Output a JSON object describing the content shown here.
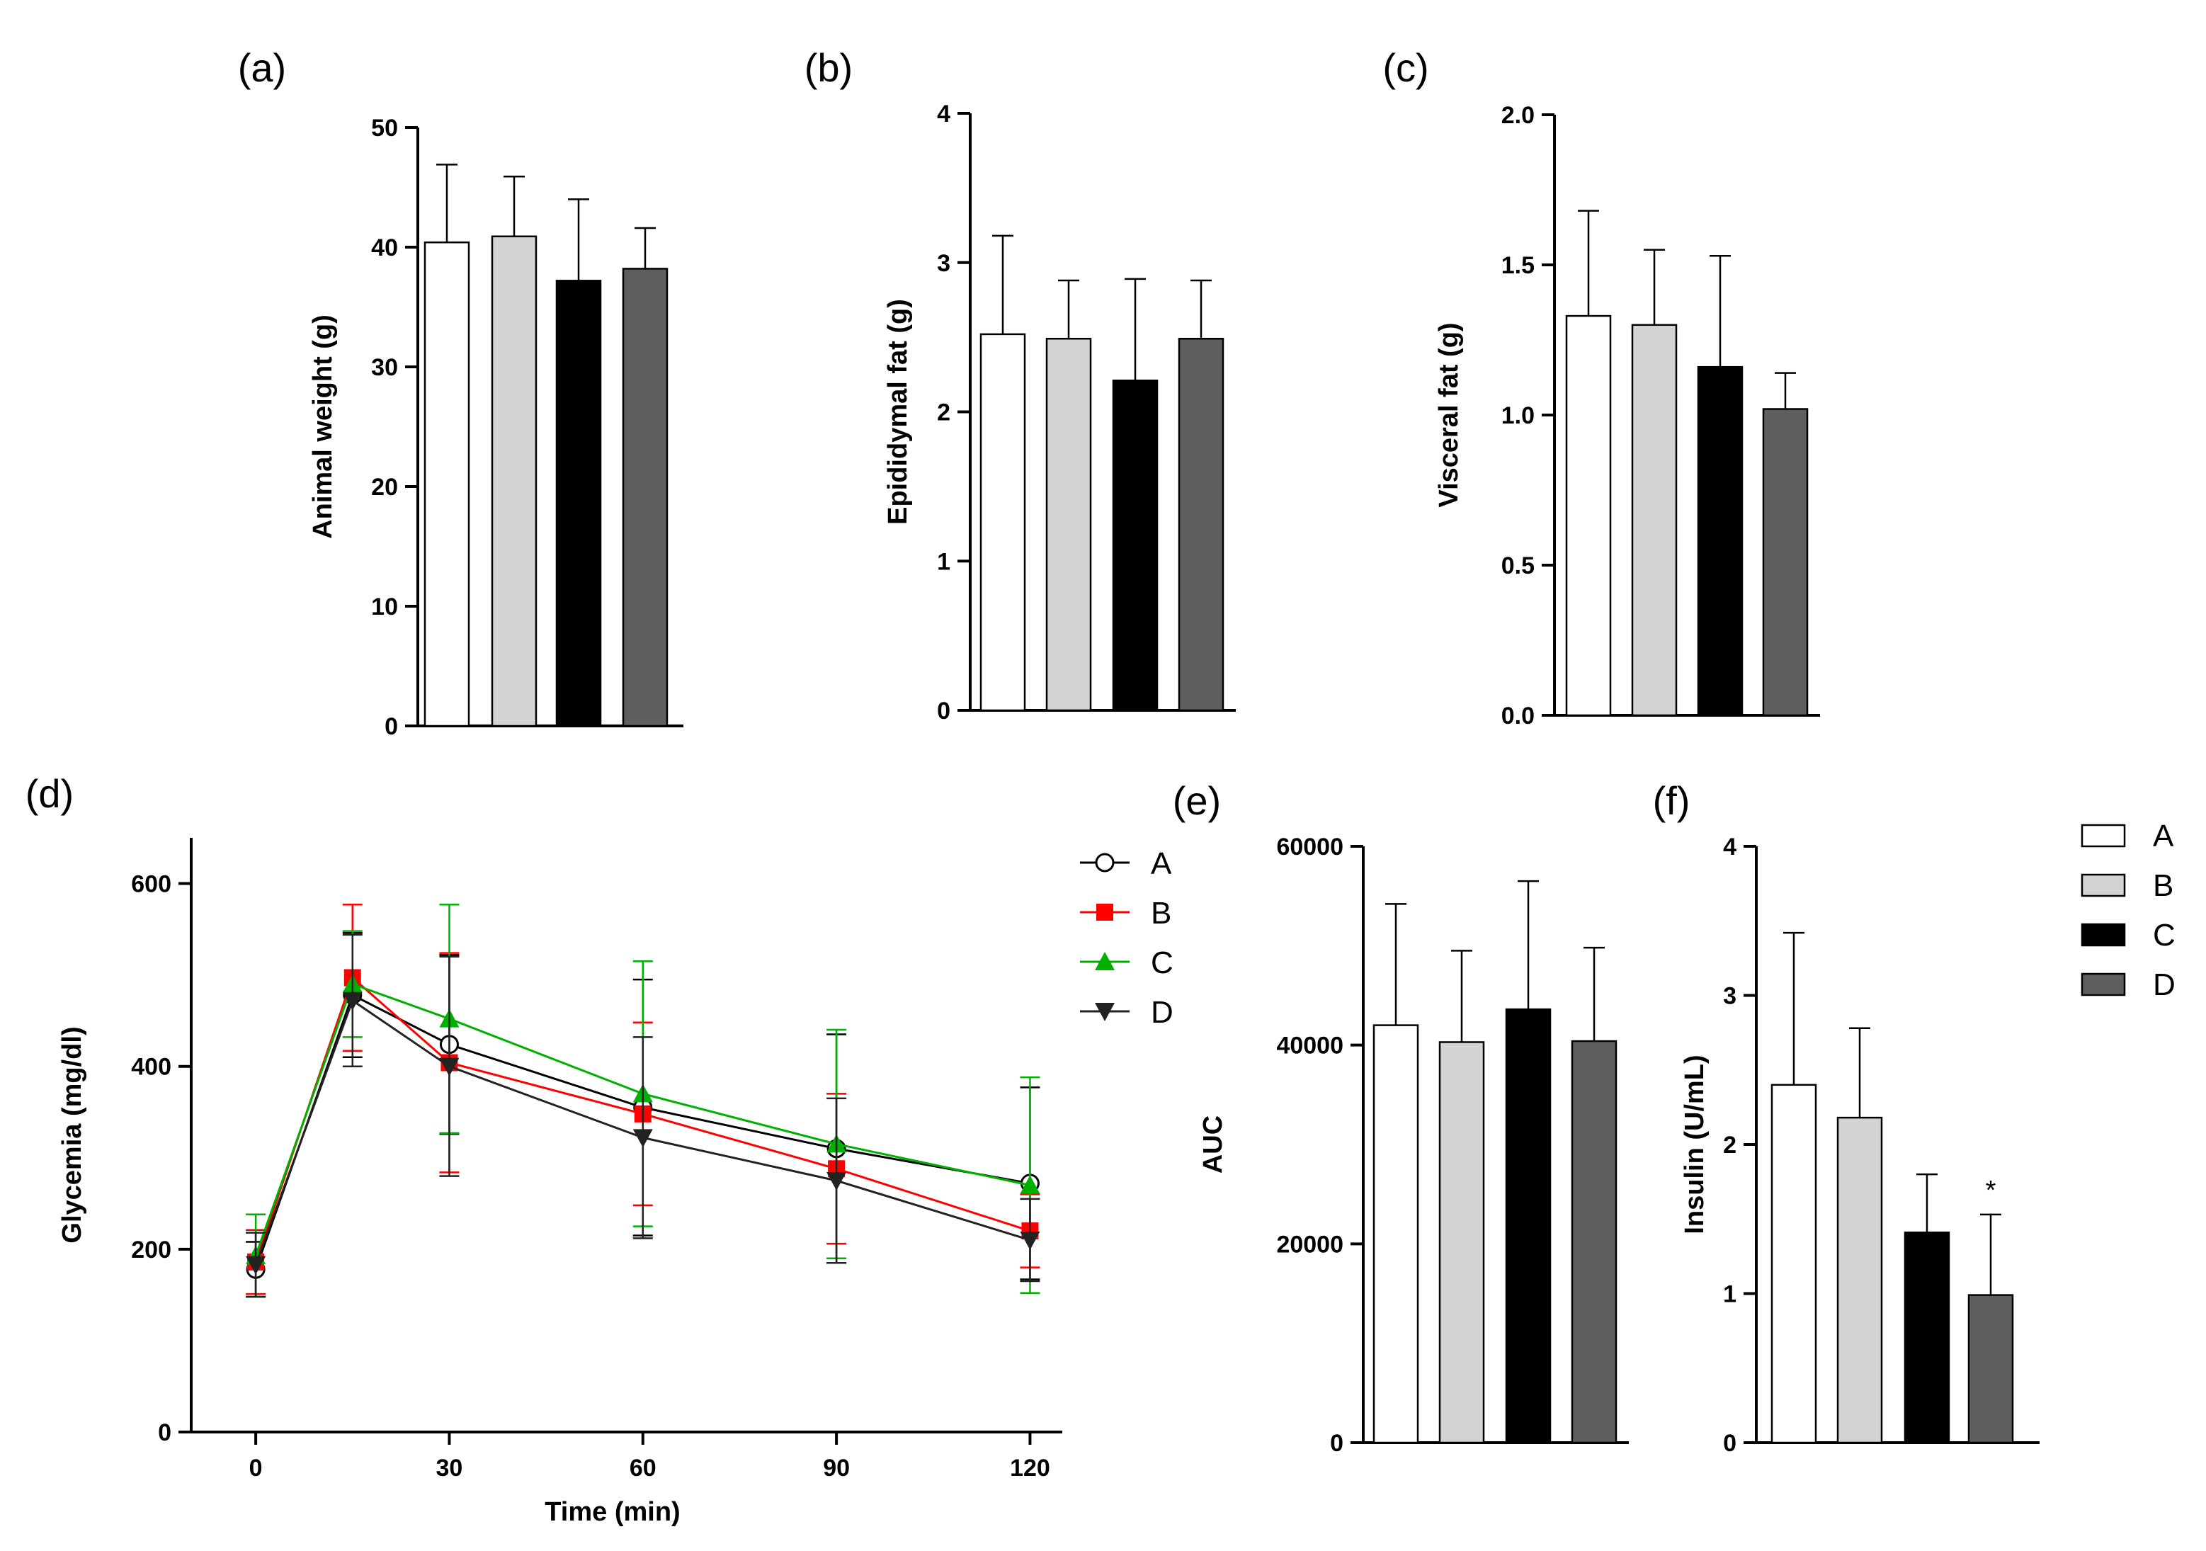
{
  "chart_data": [
    {
      "panel": "(a)",
      "type": "bar",
      "categories": [
        "A",
        "B",
        "C",
        "D"
      ],
      "values": [
        40.4,
        40.9,
        37.2,
        38.2
      ],
      "errors": [
        6.5,
        5.0,
        6.8,
        3.4
      ],
      "ylabel": "Animal weight (g)",
      "ylim": [
        0,
        50
      ],
      "yticks": [
        0,
        10,
        20,
        30,
        40,
        50
      ],
      "colors": [
        "#ffffff",
        "#d3d3d3",
        "#000000",
        "#5e5e5e"
      ]
    },
    {
      "panel": "(b)",
      "type": "bar",
      "categories": [
        "A",
        "B",
        "C",
        "D"
      ],
      "values": [
        2.52,
        2.49,
        2.21,
        2.49
      ],
      "errors": [
        0.66,
        0.39,
        0.68,
        0.39
      ],
      "ylabel": "Epididymal fat (g)",
      "ylim": [
        0,
        4
      ],
      "yticks": [
        0,
        1,
        2,
        3,
        4
      ],
      "colors": [
        "#ffffff",
        "#d3d3d3",
        "#000000",
        "#5e5e5e"
      ]
    },
    {
      "panel": "(c)",
      "type": "bar",
      "categories": [
        "A",
        "B",
        "C",
        "D"
      ],
      "values": [
        1.33,
        1.3,
        1.16,
        1.02
      ],
      "errors": [
        0.35,
        0.25,
        0.37,
        0.12
      ],
      "ylabel": "Visceral fat (g)",
      "ylim": [
        0,
        2
      ],
      "yticks": [
        "0.0",
        "0.5",
        "1.0",
        "1.5",
        "2.0"
      ],
      "colors": [
        "#ffffff",
        "#d3d3d3",
        "#000000",
        "#5e5e5e"
      ]
    },
    {
      "panel": "(d)",
      "type": "line",
      "x": [
        0,
        15,
        30,
        60,
        90,
        120
      ],
      "xlabel": "Time (min)",
      "ylabel": "Glycemia (mg/dl)",
      "xticks": [
        0,
        30,
        60,
        90,
        120
      ],
      "yticks": [
        0,
        200,
        400,
        600
      ],
      "xlim": [
        -10,
        125
      ],
      "ylim": [
        0,
        650
      ],
      "legend": "right",
      "series": [
        {
          "name": "A",
          "color": "#000000",
          "marker": "circle-open",
          "values": [
            178,
            478,
            424,
            355,
            310,
            272
          ],
          "errors": [
            30,
            68,
            98,
            140,
            125,
            105
          ]
        },
        {
          "name": "B",
          "color": "#ff0000",
          "marker": "square",
          "values": [
            186,
            497,
            404,
            348,
            288,
            220
          ],
          "errors": [
            35,
            80,
            120,
            100,
            82,
            40
          ]
        },
        {
          "name": "C",
          "color": "#00b000",
          "marker": "triangle-up",
          "values": [
            193,
            490,
            452,
            370,
            315,
            270
          ],
          "errors": [
            45,
            58,
            125,
            145,
            125,
            118
          ]
        },
        {
          "name": "D",
          "color": "#222222",
          "marker": "triangle-down",
          "values": [
            183,
            472,
            400,
            322,
            275,
            210
          ],
          "errors": [
            35,
            72,
            120,
            110,
            90,
            45
          ]
        }
      ]
    },
    {
      "panel": "(e)",
      "type": "bar",
      "categories": [
        "A",
        "B",
        "C",
        "D"
      ],
      "values": [
        42000,
        40300,
        43600,
        40400
      ],
      "errors": [
        12200,
        9200,
        12900,
        9400
      ],
      "ylabel": "AUC",
      "ylim": [
        0,
        60000
      ],
      "yticks": [
        0,
        20000,
        40000,
        60000
      ],
      "colors": [
        "#ffffff",
        "#d3d3d3",
        "#000000",
        "#5e5e5e"
      ]
    },
    {
      "panel": "(f)",
      "type": "bar",
      "categories": [
        "A",
        "B",
        "C",
        "D"
      ],
      "values": [
        2.4,
        2.18,
        1.41,
        0.99
      ],
      "errors": [
        1.02,
        0.6,
        0.39,
        0.54
      ],
      "annotations": [
        "",
        "",
        "",
        "*"
      ],
      "ylabel": "Insulin (U/mL)",
      "ylim": [
        0,
        4
      ],
      "yticks": [
        0,
        1,
        2,
        3,
        4
      ],
      "colors": [
        "#ffffff",
        "#d3d3d3",
        "#000000",
        "#5e5e5e"
      ],
      "legend": "right"
    }
  ]
}
